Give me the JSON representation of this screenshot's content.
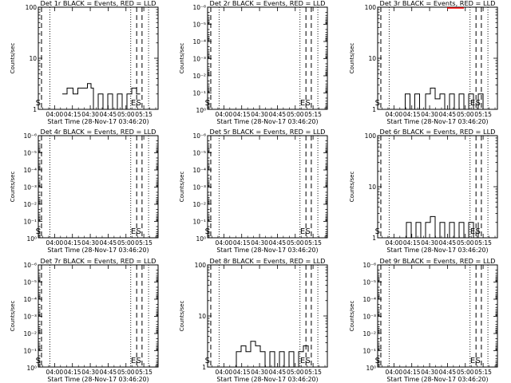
{
  "colors": {
    "events": "#000000",
    "lld": "#ff0000",
    "background": "#ffffff"
  },
  "chart_data": [
    {
      "type": "line",
      "title": "Det 1r BLACK = Events, RED = LLD",
      "xlabel": "Start Time (28-Nov-17 03:46:20)",
      "ylabel": "Counts/sec",
      "yscale": "log",
      "ylim": [
        1,
        100
      ],
      "y_ticks": [
        {
          "v": 1,
          "label": "1"
        },
        {
          "v": 10,
          "label": "10"
        },
        {
          "v": 100,
          "label": "100"
        }
      ],
      "x_range": [
        "03:46:20",
        "05:27:00"
      ],
      "x_ticks": [
        "04:00",
        "04:15",
        "04:30",
        "04:45",
        "05:00",
        "05:15"
      ],
      "markers": [
        {
          "time": "03:49:00",
          "label": "S"
        },
        {
          "time": "05:09:00",
          "label": "E"
        },
        {
          "time": "05:13:30",
          "label": "S"
        }
      ],
      "dotted": [
        "03:56:00",
        "05:04:00",
        "05:19:00"
      ],
      "series": [
        {
          "values": [
            [
              0.2,
              2
            ],
            [
              0.24,
              2.6
            ],
            [
              0.29,
              2
            ],
            [
              0.33,
              2.6
            ],
            [
              0.38,
              2.6
            ],
            [
              0.41,
              3.2
            ],
            [
              0.44,
              2.6
            ],
            [
              0.46,
              1
            ],
            [
              0.5,
              2
            ],
            [
              0.54,
              1
            ],
            [
              0.58,
              2
            ],
            [
              0.62,
              1
            ],
            [
              0.66,
              2
            ],
            [
              0.7,
              1
            ],
            [
              0.74,
              2
            ],
            [
              0.78,
              2.6
            ],
            [
              0.82,
              2
            ],
            [
              0.85,
              2
            ]
          ]
        }
      ],
      "lld": []
    },
    {
      "type": "line",
      "title": "Det 2r BLACK = Events, RED = LLD",
      "xlabel": "Start Time (28-Nov-17 03:46:20)",
      "ylabel": "Counts/sec",
      "yscale": "log",
      "ylim": [
        0.9,
        1e-06
      ],
      "y_ticks": [
        {
          "v": 1,
          "label": "10⁰"
        },
        {
          "v": 0.1,
          "label": "10⁻¹"
        },
        {
          "v": 0.01,
          "label": "10⁻²"
        },
        {
          "v": 0.001,
          "label": "10⁻³"
        },
        {
          "v": 0.0001,
          "label": "10⁻⁴"
        },
        {
          "v": 1e-05,
          "label": "10⁻⁵"
        },
        {
          "v": 1e-06,
          "label": "10⁻⁶"
        }
      ],
      "x_range": [
        "03:46:20",
        "05:27:00"
      ],
      "x_ticks": [
        "04:00",
        "04:15",
        "04:30",
        "04:45",
        "05:00",
        "05:15"
      ],
      "markers": [
        {
          "time": "03:49:00",
          "label": "S"
        },
        {
          "time": "05:09:00",
          "label": "E"
        },
        {
          "time": "05:13:30",
          "label": "S"
        }
      ],
      "dotted": [
        "03:56:00",
        "05:04:00",
        "05:19:00"
      ],
      "series": [],
      "lld": []
    },
    {
      "type": "line",
      "title": "Det 3r BLACK = Events, RED = LLD",
      "xlabel": "Start Time (28-Nov-17 03:46:20)",
      "ylabel": "Counts/sec",
      "yscale": "log",
      "ylim": [
        1,
        100
      ],
      "y_ticks": [
        {
          "v": 1,
          "label": "1"
        },
        {
          "v": 10,
          "label": "10"
        },
        {
          "v": 100,
          "label": "100"
        }
      ],
      "x_range": [
        "03:46:20",
        "05:27:00"
      ],
      "x_ticks": [
        "04:00",
        "04:15",
        "04:30",
        "04:45",
        "05:00",
        "05:15"
      ],
      "markers": [
        {
          "time": "03:49:00",
          "label": "S"
        },
        {
          "time": "05:09:00",
          "label": "E"
        },
        {
          "time": "05:13:30",
          "label": "S"
        }
      ],
      "dotted": [
        "03:56:00",
        "05:04:00",
        "05:19:00"
      ],
      "series": [
        {
          "values": [
            [
              0.2,
              1
            ],
            [
              0.23,
              2
            ],
            [
              0.27,
              1
            ],
            [
              0.31,
              2
            ],
            [
              0.35,
              1
            ],
            [
              0.4,
              2
            ],
            [
              0.44,
              2.6
            ],
            [
              0.48,
              1.6
            ],
            [
              0.52,
              2
            ],
            [
              0.56,
              1
            ],
            [
              0.6,
              2
            ],
            [
              0.64,
              1
            ],
            [
              0.68,
              2
            ],
            [
              0.72,
              1
            ],
            [
              0.76,
              2
            ],
            [
              0.8,
              1
            ],
            [
              0.84,
              2
            ],
            [
              0.88,
              1
            ]
          ]
        }
      ],
      "lld": [
        [
          0.58,
          100
        ],
        [
          0.72,
          100
        ]
      ]
    },
    {
      "type": "line",
      "title": "Det 4r BLACK = Events, RED = LLD",
      "xlabel": "Start Time (28-Nov-17 03:46:20)",
      "ylabel": "Counts/sec",
      "yscale": "log",
      "ylim": [
        0.9,
        1e-06
      ],
      "y_ticks": [
        {
          "v": 1,
          "label": "10⁰"
        },
        {
          "v": 0.1,
          "label": "10⁻¹"
        },
        {
          "v": 0.01,
          "label": "10⁻²"
        },
        {
          "v": 0.001,
          "label": "10⁻³"
        },
        {
          "v": 0.0001,
          "label": "10⁻⁴"
        },
        {
          "v": 1e-05,
          "label": "10⁻⁵"
        },
        {
          "v": 1e-06,
          "label": "10⁻⁶"
        }
      ],
      "x_range": [
        "03:46:20",
        "05:27:00"
      ],
      "x_ticks": [
        "04:00",
        "04:15",
        "04:30",
        "04:45",
        "05:00",
        "05:15"
      ],
      "markers": [
        {
          "time": "03:49:00",
          "label": "S"
        },
        {
          "time": "05:09:00",
          "label": "E"
        },
        {
          "time": "05:13:30",
          "label": "S"
        }
      ],
      "dotted": [
        "03:56:00",
        "05:04:00",
        "05:19:00"
      ],
      "series": [],
      "lld": []
    },
    {
      "type": "line",
      "title": "Det 5r BLACK = Events, RED = LLD",
      "xlabel": "Start Time (28-Nov-17 03:46:20)",
      "ylabel": "Counts/sec",
      "yscale": "log",
      "ylim": [
        0.9,
        1e-06
      ],
      "y_ticks": [
        {
          "v": 1,
          "label": "10⁰"
        },
        {
          "v": 0.1,
          "label": "10⁻¹"
        },
        {
          "v": 0.01,
          "label": "10⁻²"
        },
        {
          "v": 0.001,
          "label": "10⁻³"
        },
        {
          "v": 0.0001,
          "label": "10⁻⁴"
        },
        {
          "v": 1e-05,
          "label": "10⁻⁵"
        },
        {
          "v": 1e-06,
          "label": "10⁻⁶"
        }
      ],
      "x_range": [
        "03:46:20",
        "05:27:00"
      ],
      "x_ticks": [
        "04:00",
        "04:15",
        "04:30",
        "04:45",
        "05:00",
        "05:15"
      ],
      "markers": [
        {
          "time": "03:49:00",
          "label": "S"
        },
        {
          "time": "05:09:00",
          "label": "E"
        },
        {
          "time": "05:13:30",
          "label": "S"
        }
      ],
      "dotted": [
        "03:56:00",
        "05:04:00",
        "05:19:00"
      ],
      "series": [],
      "lld": []
    },
    {
      "type": "line",
      "title": "Det 6r BLACK = Events, RED = LLD",
      "xlabel": "Start Time (28-Nov-17 03:46:20)",
      "ylabel": "Counts/sec",
      "yscale": "log",
      "ylim": [
        1,
        100
      ],
      "y_ticks": [
        {
          "v": 1,
          "label": "1"
        },
        {
          "v": 10,
          "label": "10"
        },
        {
          "v": 100,
          "label": "100"
        }
      ],
      "x_range": [
        "03:46:20",
        "05:27:00"
      ],
      "x_ticks": [
        "04:00",
        "04:15",
        "04:30",
        "04:45",
        "05:00",
        "05:15"
      ],
      "markers": [
        {
          "time": "03:49:00",
          "label": "S"
        },
        {
          "time": "05:09:00",
          "label": "E"
        },
        {
          "time": "05:13:30",
          "label": "S"
        }
      ],
      "dotted": [
        "03:56:00",
        "05:04:00",
        "05:19:00"
      ],
      "series": [
        {
          "values": [
            [
              0.2,
              1
            ],
            [
              0.24,
              2
            ],
            [
              0.28,
              1
            ],
            [
              0.32,
              2
            ],
            [
              0.36,
              1
            ],
            [
              0.4,
              2
            ],
            [
              0.44,
              2.6
            ],
            [
              0.48,
              1
            ],
            [
              0.52,
              2
            ],
            [
              0.56,
              1
            ],
            [
              0.6,
              2
            ],
            [
              0.64,
              1
            ],
            [
              0.68,
              2
            ],
            [
              0.72,
              1
            ],
            [
              0.76,
              2
            ],
            [
              0.8,
              1
            ],
            [
              0.84,
              2
            ]
          ]
        }
      ],
      "lld": []
    },
    {
      "type": "line",
      "title": "Det 7r BLACK = Events, RED = LLD",
      "xlabel": "Start Time (28-Nov-17 03:46:20)",
      "ylabel": "Counts/sec",
      "yscale": "log",
      "ylim": [
        0.9,
        1e-06
      ],
      "y_ticks": [
        {
          "v": 1,
          "label": "10⁰"
        },
        {
          "v": 0.1,
          "label": "10⁻¹"
        },
        {
          "v": 0.01,
          "label": "10⁻²"
        },
        {
          "v": 0.001,
          "label": "10⁻³"
        },
        {
          "v": 0.0001,
          "label": "10⁻⁴"
        },
        {
          "v": 1e-05,
          "label": "10⁻⁵"
        },
        {
          "v": 1e-06,
          "label": "10⁻⁶"
        }
      ],
      "x_range": [
        "03:46:20",
        "05:27:00"
      ],
      "x_ticks": [
        "04:00",
        "04:15",
        "04:30",
        "04:45",
        "05:00",
        "05:15"
      ],
      "markers": [
        {
          "time": "03:49:00",
          "label": "S"
        },
        {
          "time": "05:09:00",
          "label": "E"
        },
        {
          "time": "05:13:30",
          "label": "S"
        }
      ],
      "dotted": [
        "03:56:00",
        "05:04:00",
        "05:19:00"
      ],
      "series": [],
      "lld": []
    },
    {
      "type": "line",
      "title": "Det 8r BLACK = Events, RED = LLD",
      "xlabel": "Start Time (28-Nov-17 03:46:20)",
      "ylabel": "Counts/sec",
      "yscale": "log",
      "ylim": [
        1,
        100
      ],
      "y_ticks": [
        {
          "v": 1,
          "label": "1"
        },
        {
          "v": 10,
          "label": "10"
        },
        {
          "v": 100,
          "label": "100"
        }
      ],
      "x_range": [
        "03:46:20",
        "05:27:00"
      ],
      "x_ticks": [
        "04:00",
        "04:15",
        "04:30",
        "04:45",
        "05:00",
        "05:15"
      ],
      "markers": [
        {
          "time": "03:49:00",
          "label": "S"
        },
        {
          "time": "05:09:00",
          "label": "E"
        },
        {
          "time": "05:13:30",
          "label": "S"
        }
      ],
      "dotted": [
        "03:56:00",
        "05:04:00",
        "05:19:00"
      ],
      "series": [
        {
          "values": [
            [
              0.2,
              1
            ],
            [
              0.24,
              2
            ],
            [
              0.28,
              2.6
            ],
            [
              0.32,
              2
            ],
            [
              0.36,
              3.2
            ],
            [
              0.4,
              2.6
            ],
            [
              0.44,
              2
            ],
            [
              0.48,
              1
            ],
            [
              0.52,
              2
            ],
            [
              0.56,
              1
            ],
            [
              0.6,
              2
            ],
            [
              0.64,
              1
            ],
            [
              0.68,
              2
            ],
            [
              0.72,
              1
            ],
            [
              0.76,
              2
            ],
            [
              0.8,
              2.6
            ],
            [
              0.84,
              2
            ]
          ]
        }
      ],
      "lld": []
    },
    {
      "type": "line",
      "title": "Det 9r BLACK = Events, RED = LLD",
      "xlabel": "Start Time (28-Nov-17 03:46:20)",
      "ylabel": "Counts/sec",
      "yscale": "log",
      "ylim": [
        0.9,
        1e-06
      ],
      "y_ticks": [
        {
          "v": 1,
          "label": "10⁰"
        },
        {
          "v": 0.1,
          "label": "10⁻¹"
        },
        {
          "v": 0.01,
          "label": "10⁻²"
        },
        {
          "v": 0.001,
          "label": "10⁻³"
        },
        {
          "v": 0.0001,
          "label": "10⁻⁴"
        },
        {
          "v": 1e-05,
          "label": "10⁻⁵"
        },
        {
          "v": 1e-06,
          "label": "10⁻⁶"
        }
      ],
      "x_range": [
        "03:46:20",
        "05:27:00"
      ],
      "x_ticks": [
        "04:00",
        "04:15",
        "04:30",
        "04:45",
        "05:00",
        "05:15"
      ],
      "markers": [
        {
          "time": "03:49:00",
          "label": "S"
        },
        {
          "time": "05:09:00",
          "label": "E"
        },
        {
          "time": "05:13:30",
          "label": "S"
        }
      ],
      "dotted": [
        "03:56:00",
        "05:04:00",
        "05:19:00"
      ],
      "series": [],
      "lld": []
    }
  ]
}
